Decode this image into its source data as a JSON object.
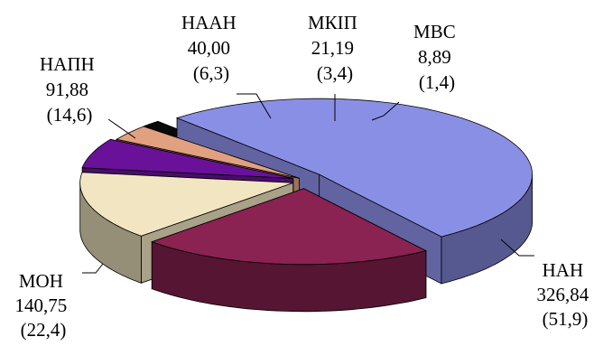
{
  "chart_data": {
    "type": "pie",
    "style": "3d-exploded",
    "title": "",
    "slices": [
      {
        "name": "НАН",
        "value": "326,84",
        "percent": "(51,9)",
        "v": 326.84,
        "color": "#8a8fe6"
      },
      {
        "name": "МВС",
        "value": "8,89",
        "percent": "(1,4)",
        "v": 8.89,
        "color": "#0a0a0a"
      },
      {
        "name": "МКІП",
        "value": "21,19",
        "percent": "(3,4)",
        "v": 21.19,
        "color": "#e1a080"
      },
      {
        "name": "НААН",
        "value": "40,00",
        "percent": "(6,3)",
        "v": 40.0,
        "color": "#6a119a"
      },
      {
        "name": "НАПН",
        "value": "91,88",
        "percent": "(14,6)",
        "v": 91.88,
        "color": "#f2e6c2"
      },
      {
        "name": "МОН",
        "value": "140,75",
        "percent": "(22,4)",
        "v": 140.75,
        "color": "#8a2252"
      }
    ]
  }
}
